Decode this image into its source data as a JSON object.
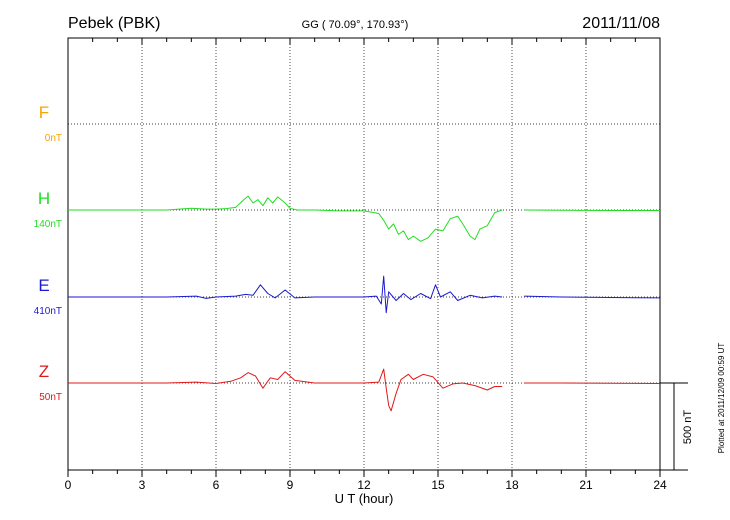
{
  "header": {
    "station": "Pebek (PBK)",
    "coords": "GG ( 70.09°, 170.93°)",
    "date": "2011/11/08"
  },
  "footer": {
    "plotted_note": "Plotted at 2011/12/09 00:59 UT"
  },
  "scale_bar": {
    "label": "500 nT",
    "value_nT": 500
  },
  "chart_data": {
    "type": "line",
    "xlabel": "U T (hour)",
    "xlim": [
      0,
      24
    ],
    "x_ticks": [
      "0",
      "3",
      "6",
      "9",
      "12",
      "15",
      "18",
      "21",
      "24"
    ],
    "grid": true,
    "baseline_hours_gap": [
      17.6,
      18.5
    ],
    "series": [
      {
        "name": "F",
        "offset_label": "0nT",
        "color": "#f5a500",
        "points": []
      },
      {
        "name": "H",
        "offset_label": "140nT",
        "color": "#22dd22",
        "points": [
          [
            0,
            0
          ],
          [
            2,
            0
          ],
          [
            4,
            0
          ],
          [
            5.0,
            10
          ],
          [
            5.6,
            5
          ],
          [
            6.0,
            5
          ],
          [
            6.4,
            8
          ],
          [
            6.8,
            15
          ],
          [
            7.1,
            55
          ],
          [
            7.3,
            80
          ],
          [
            7.5,
            40
          ],
          [
            7.7,
            60
          ],
          [
            7.9,
            25
          ],
          [
            8.1,
            70
          ],
          [
            8.3,
            40
          ],
          [
            8.5,
            75
          ],
          [
            8.8,
            40
          ],
          [
            9.0,
            10
          ],
          [
            9.3,
            0
          ],
          [
            10,
            0
          ],
          [
            11,
            -5
          ],
          [
            12,
            -5
          ],
          [
            12.6,
            -20
          ],
          [
            12.8,
            -60
          ],
          [
            13.0,
            -110
          ],
          [
            13.2,
            -80
          ],
          [
            13.4,
            -140
          ],
          [
            13.6,
            -120
          ],
          [
            13.8,
            -170
          ],
          [
            14.0,
            -150
          ],
          [
            14.3,
            -180
          ],
          [
            14.6,
            -160
          ],
          [
            14.9,
            -110
          ],
          [
            15.2,
            -120
          ],
          [
            15.5,
            -50
          ],
          [
            15.8,
            -35
          ],
          [
            16.0,
            -80
          ],
          [
            16.3,
            -150
          ],
          [
            16.5,
            -170
          ],
          [
            16.7,
            -110
          ],
          [
            17.0,
            -90
          ],
          [
            17.3,
            -15
          ],
          [
            17.6,
            0
          ],
          [
            18.5,
            0
          ],
          [
            20,
            -2
          ],
          [
            22,
            -3
          ],
          [
            24,
            -3
          ]
        ]
      },
      {
        "name": "E",
        "offset_label": "410nT",
        "color": "#1a1ad2",
        "points": [
          [
            0,
            0
          ],
          [
            2,
            0
          ],
          [
            4,
            0
          ],
          [
            5.2,
            5
          ],
          [
            5.6,
            -8
          ],
          [
            6.0,
            0
          ],
          [
            6.8,
            5
          ],
          [
            7.2,
            15
          ],
          [
            7.5,
            10
          ],
          [
            7.8,
            70
          ],
          [
            8.1,
            20
          ],
          [
            8.4,
            -5
          ],
          [
            8.8,
            40
          ],
          [
            9.2,
            -5
          ],
          [
            10,
            0
          ],
          [
            11,
            0
          ],
          [
            12,
            0
          ],
          [
            12.5,
            5
          ],
          [
            12.7,
            -40
          ],
          [
            12.8,
            120
          ],
          [
            12.9,
            -90
          ],
          [
            13.0,
            30
          ],
          [
            13.3,
            -20
          ],
          [
            13.6,
            20
          ],
          [
            13.9,
            -15
          ],
          [
            14.3,
            20
          ],
          [
            14.7,
            -10
          ],
          [
            14.9,
            70
          ],
          [
            15.1,
            0
          ],
          [
            15.5,
            30
          ],
          [
            15.8,
            -20
          ],
          [
            16.3,
            10
          ],
          [
            16.8,
            -5
          ],
          [
            17.3,
            5
          ],
          [
            17.6,
            0
          ],
          [
            18.5,
            5
          ],
          [
            20,
            0
          ],
          [
            22,
            -3
          ],
          [
            24,
            -5
          ]
        ]
      },
      {
        "name": "Z",
        "offset_label": "50nT",
        "color": "#e01818",
        "points": [
          [
            0,
            0
          ],
          [
            2,
            0
          ],
          [
            4,
            0
          ],
          [
            5.2,
            5
          ],
          [
            6.0,
            -3
          ],
          [
            6.6,
            10
          ],
          [
            7.0,
            30
          ],
          [
            7.3,
            60
          ],
          [
            7.6,
            40
          ],
          [
            7.9,
            -30
          ],
          [
            8.2,
            30
          ],
          [
            8.5,
            20
          ],
          [
            8.8,
            65
          ],
          [
            9.2,
            15
          ],
          [
            10,
            0
          ],
          [
            11,
            0
          ],
          [
            12,
            0
          ],
          [
            12.6,
            5
          ],
          [
            12.8,
            80
          ],
          [
            12.9,
            -30
          ],
          [
            13.0,
            -130
          ],
          [
            13.1,
            -160
          ],
          [
            13.3,
            -60
          ],
          [
            13.5,
            20
          ],
          [
            13.8,
            50
          ],
          [
            14.0,
            20
          ],
          [
            14.4,
            50
          ],
          [
            14.8,
            35
          ],
          [
            15.2,
            -30
          ],
          [
            15.6,
            -5
          ],
          [
            16.0,
            0
          ],
          [
            16.5,
            -15
          ],
          [
            17.0,
            -40
          ],
          [
            17.3,
            -20
          ],
          [
            17.6,
            -20
          ],
          [
            18.5,
            0
          ],
          [
            20,
            0
          ],
          [
            22,
            -2
          ],
          [
            24,
            -3
          ]
        ]
      }
    ]
  }
}
